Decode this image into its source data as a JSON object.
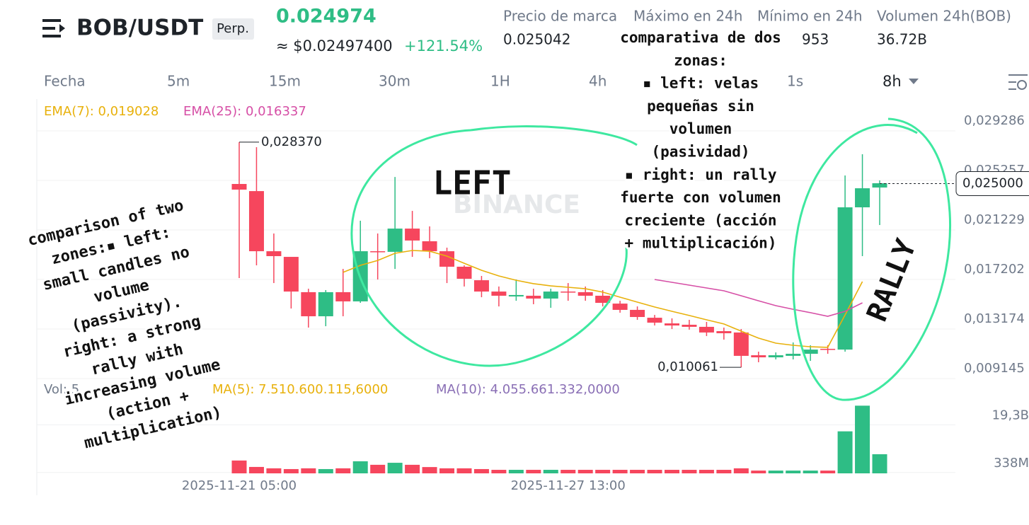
{
  "header": {
    "pair": "BOB/USDT",
    "contract": "Perp.",
    "price": "0.024974",
    "usd_price": "≈ $0.02497400",
    "change": "+121.54%",
    "stats": [
      {
        "label": "Precio de marca",
        "value": "0.025042"
      },
      {
        "label": "Máximo en 24h"
      },
      {
        "label": "Mínimo en 24h",
        "value": "953"
      },
      {
        "label": "Volumen 24h(BOB)",
        "value": "36.72B"
      }
    ]
  },
  "tabs": [
    "Fecha",
    "5m",
    "15m",
    "30m",
    "1H",
    "4h",
    "1s",
    "8h"
  ],
  "chart_data": {
    "type": "candlestick",
    "up_color": "#2ebd85",
    "down_color": "#f6465d",
    "watermark": "BINANCE",
    "categories": [
      "2025-11-21 05:00",
      null,
      null,
      null,
      null,
      null,
      null,
      null,
      null,
      null,
      null,
      null,
      null,
      null,
      null,
      null,
      null,
      null,
      null,
      "2025-11-27 13:00",
      null,
      null,
      null,
      null,
      null,
      null,
      null,
      null,
      null,
      null,
      null,
      null,
      null,
      null,
      null,
      null,
      null,
      null
    ],
    "open": [
      0.02497,
      0.02439,
      0.0195,
      0.01904,
      0.01617,
      0.01421,
      0.01617,
      0.01542,
      0.0195,
      0.01945,
      0.02134,
      0.02031,
      0.0195,
      0.01824,
      0.01714,
      0.01622,
      0.01582,
      0.01588,
      0.01565,
      0.01622,
      0.01617,
      0.01588,
      0.01524,
      0.01473,
      0.01409,
      0.01363,
      0.01352,
      0.01335,
      0.013,
      0.01289,
      0.01104,
      0.01087,
      0.01099,
      0.01116,
      0.01156,
      0.0115,
      0.02307,
      0.02468
    ],
    "high": [
      0.02837,
      0.02796,
      0.02094,
      0.01893,
      0.01645,
      0.01634,
      0.01806,
      0.02198,
      0.02094,
      0.02554,
      0.02278,
      0.02152,
      0.01979,
      0.01835,
      0.01749,
      0.01663,
      0.0172,
      0.01645,
      0.01645,
      0.01691,
      0.01663,
      0.01634,
      0.01547,
      0.01501,
      0.01432,
      0.01404,
      0.01392,
      0.01375,
      0.01329,
      0.01317,
      0.01133,
      0.01127,
      0.01208,
      0.01185,
      0.01185,
      0.02566,
      0.02739,
      0.02526
    ],
    "low": [
      0.01732,
      0.01835,
      0.01691,
      0.01484,
      0.01329,
      0.0134,
      0.01421,
      0.0153,
      0.0172,
      0.01806,
      0.01904,
      0.01893,
      0.01691,
      0.01663,
      0.01576,
      0.01501,
      0.01547,
      0.01519,
      0.0149,
      0.01547,
      0.01547,
      0.01501,
      0.0145,
      0.01392,
      0.01346,
      0.01317,
      0.01312,
      0.0126,
      0.01231,
      0.010061,
      0.01047,
      0.0107,
      0.0107,
      0.01058,
      0.01116,
      0.01133,
      0.0191,
      0.02163
    ],
    "close": [
      0.02451,
      0.0195,
      0.0191,
      0.01622,
      0.01421,
      0.01617,
      0.01542,
      0.0195,
      0.01945,
      0.02134,
      0.02037,
      0.0195,
      0.01824,
      0.01726,
      0.01622,
      0.01588,
      0.01594,
      0.01565,
      0.01622,
      0.01617,
      0.01588,
      0.0153,
      0.01473,
      0.01415,
      0.01369,
      0.01346,
      0.01335,
      0.01289,
      0.01283,
      0.01099,
      0.01087,
      0.01104,
      0.01116,
      0.0115,
      0.0115,
      0.02307,
      0.02462,
      0.02503
    ],
    "ylim": [
      0.009145,
      0.0313
    ],
    "yticks": [
      {
        "value": 0.029286,
        "label": "0,029286"
      },
      {
        "value": 0.025257,
        "label": "0,025257"
      },
      {
        "value": 0.021229,
        "label": "0,021229"
      },
      {
        "value": 0.017202,
        "label": "0,017202"
      },
      {
        "value": 0.013174,
        "label": "0,013174"
      },
      {
        "value": 0.009145,
        "label": "0,009145"
      }
    ],
    "grid": true,
    "max_label": {
      "value": 0.02837,
      "label": "0,028370"
    },
    "min_label": {
      "value": 0.010061,
      "label": "0,010061"
    },
    "last_price": {
      "value": 0.025,
      "label": "0,025000"
    },
    "series": [
      {
        "name": "EMA(7): 0,019028",
        "color": "#e8b10c",
        "values": [
          null,
          null,
          null,
          null,
          null,
          null,
          0.01778,
          0.01835,
          0.01875,
          0.01933,
          0.01956,
          0.0195,
          0.0191,
          0.01852,
          0.01795,
          0.01749,
          0.01714,
          0.01686,
          0.01668,
          0.01657,
          0.01645,
          0.01617,
          0.01576,
          0.01536,
          0.01496,
          0.01461,
          0.01427,
          0.01392,
          0.01358,
          0.013,
          0.01243,
          0.01202,
          0.01185,
          0.01173,
          0.01168,
          0.01432,
          0.01703,
          null
        ]
      },
      {
        "name": "EMA(25): 0,016337",
        "color": "#d64fa6",
        "values": [
          null,
          null,
          null,
          null,
          null,
          null,
          null,
          null,
          null,
          null,
          null,
          null,
          null,
          null,
          null,
          null,
          null,
          null,
          null,
          null,
          null,
          null,
          null,
          null,
          0.0172,
          0.01697,
          0.01674,
          0.01651,
          0.01628,
          0.01588,
          0.01547,
          0.01507,
          0.01478,
          0.0145,
          0.01421,
          0.01461,
          0.0153,
          null
        ]
      }
    ],
    "volume": {
      "label": "Vol: 5",
      "ma_labels": [
        {
          "name": "MA(5): 7.510.600.115,6000",
          "color": "#e8b10c"
        },
        {
          "name": "MA(10): 4.055.661.332,0000",
          "color": "#8a6fb5"
        }
      ],
      "values": [
        5100000000,
        2550000000,
        2000000000,
        1700000000,
        2000000000,
        1700000000,
        2000000000,
        4800000000,
        3400000000,
        4200000000,
        3400000000,
        2500000000,
        2000000000,
        2000000000,
        1700000000,
        1400000000,
        1400000000,
        1400000000,
        1400000000,
        1400000000,
        1400000000,
        1400000000,
        1400000000,
        1400000000,
        1400000000,
        1400000000,
        1400000000,
        1400000000,
        1400000000,
        2000000000,
        1100000000,
        1100000000,
        1100000000,
        1100000000,
        1100000000,
        16700000000,
        26900000000,
        7600000000
      ],
      "ylim": [
        0,
        27000000000
      ],
      "yticks": [
        {
          "value": 19300000000,
          "label": "19,3B"
        },
        {
          "value": 338000000,
          "label": "338M"
        }
      ]
    }
  },
  "annotations": {
    "left_word": "LEFT",
    "rally_word": "RALLY",
    "english": [
      "comparison of two",
      "zones:▪ left:",
      "small candles no",
      "volume",
      "(passivity).",
      "right: a strong",
      "rally with",
      "increasing volume",
      "(action +",
      "multiplication)"
    ],
    "spanish": [
      "comparativa de dos",
      "zonas:",
      "▪ left: velas",
      "pequeñas sin",
      "volumen",
      "(pasividad)",
      "▪ right: un rally",
      "fuerte con volumen",
      "creciente (acción",
      "+ multiplicación)"
    ]
  }
}
